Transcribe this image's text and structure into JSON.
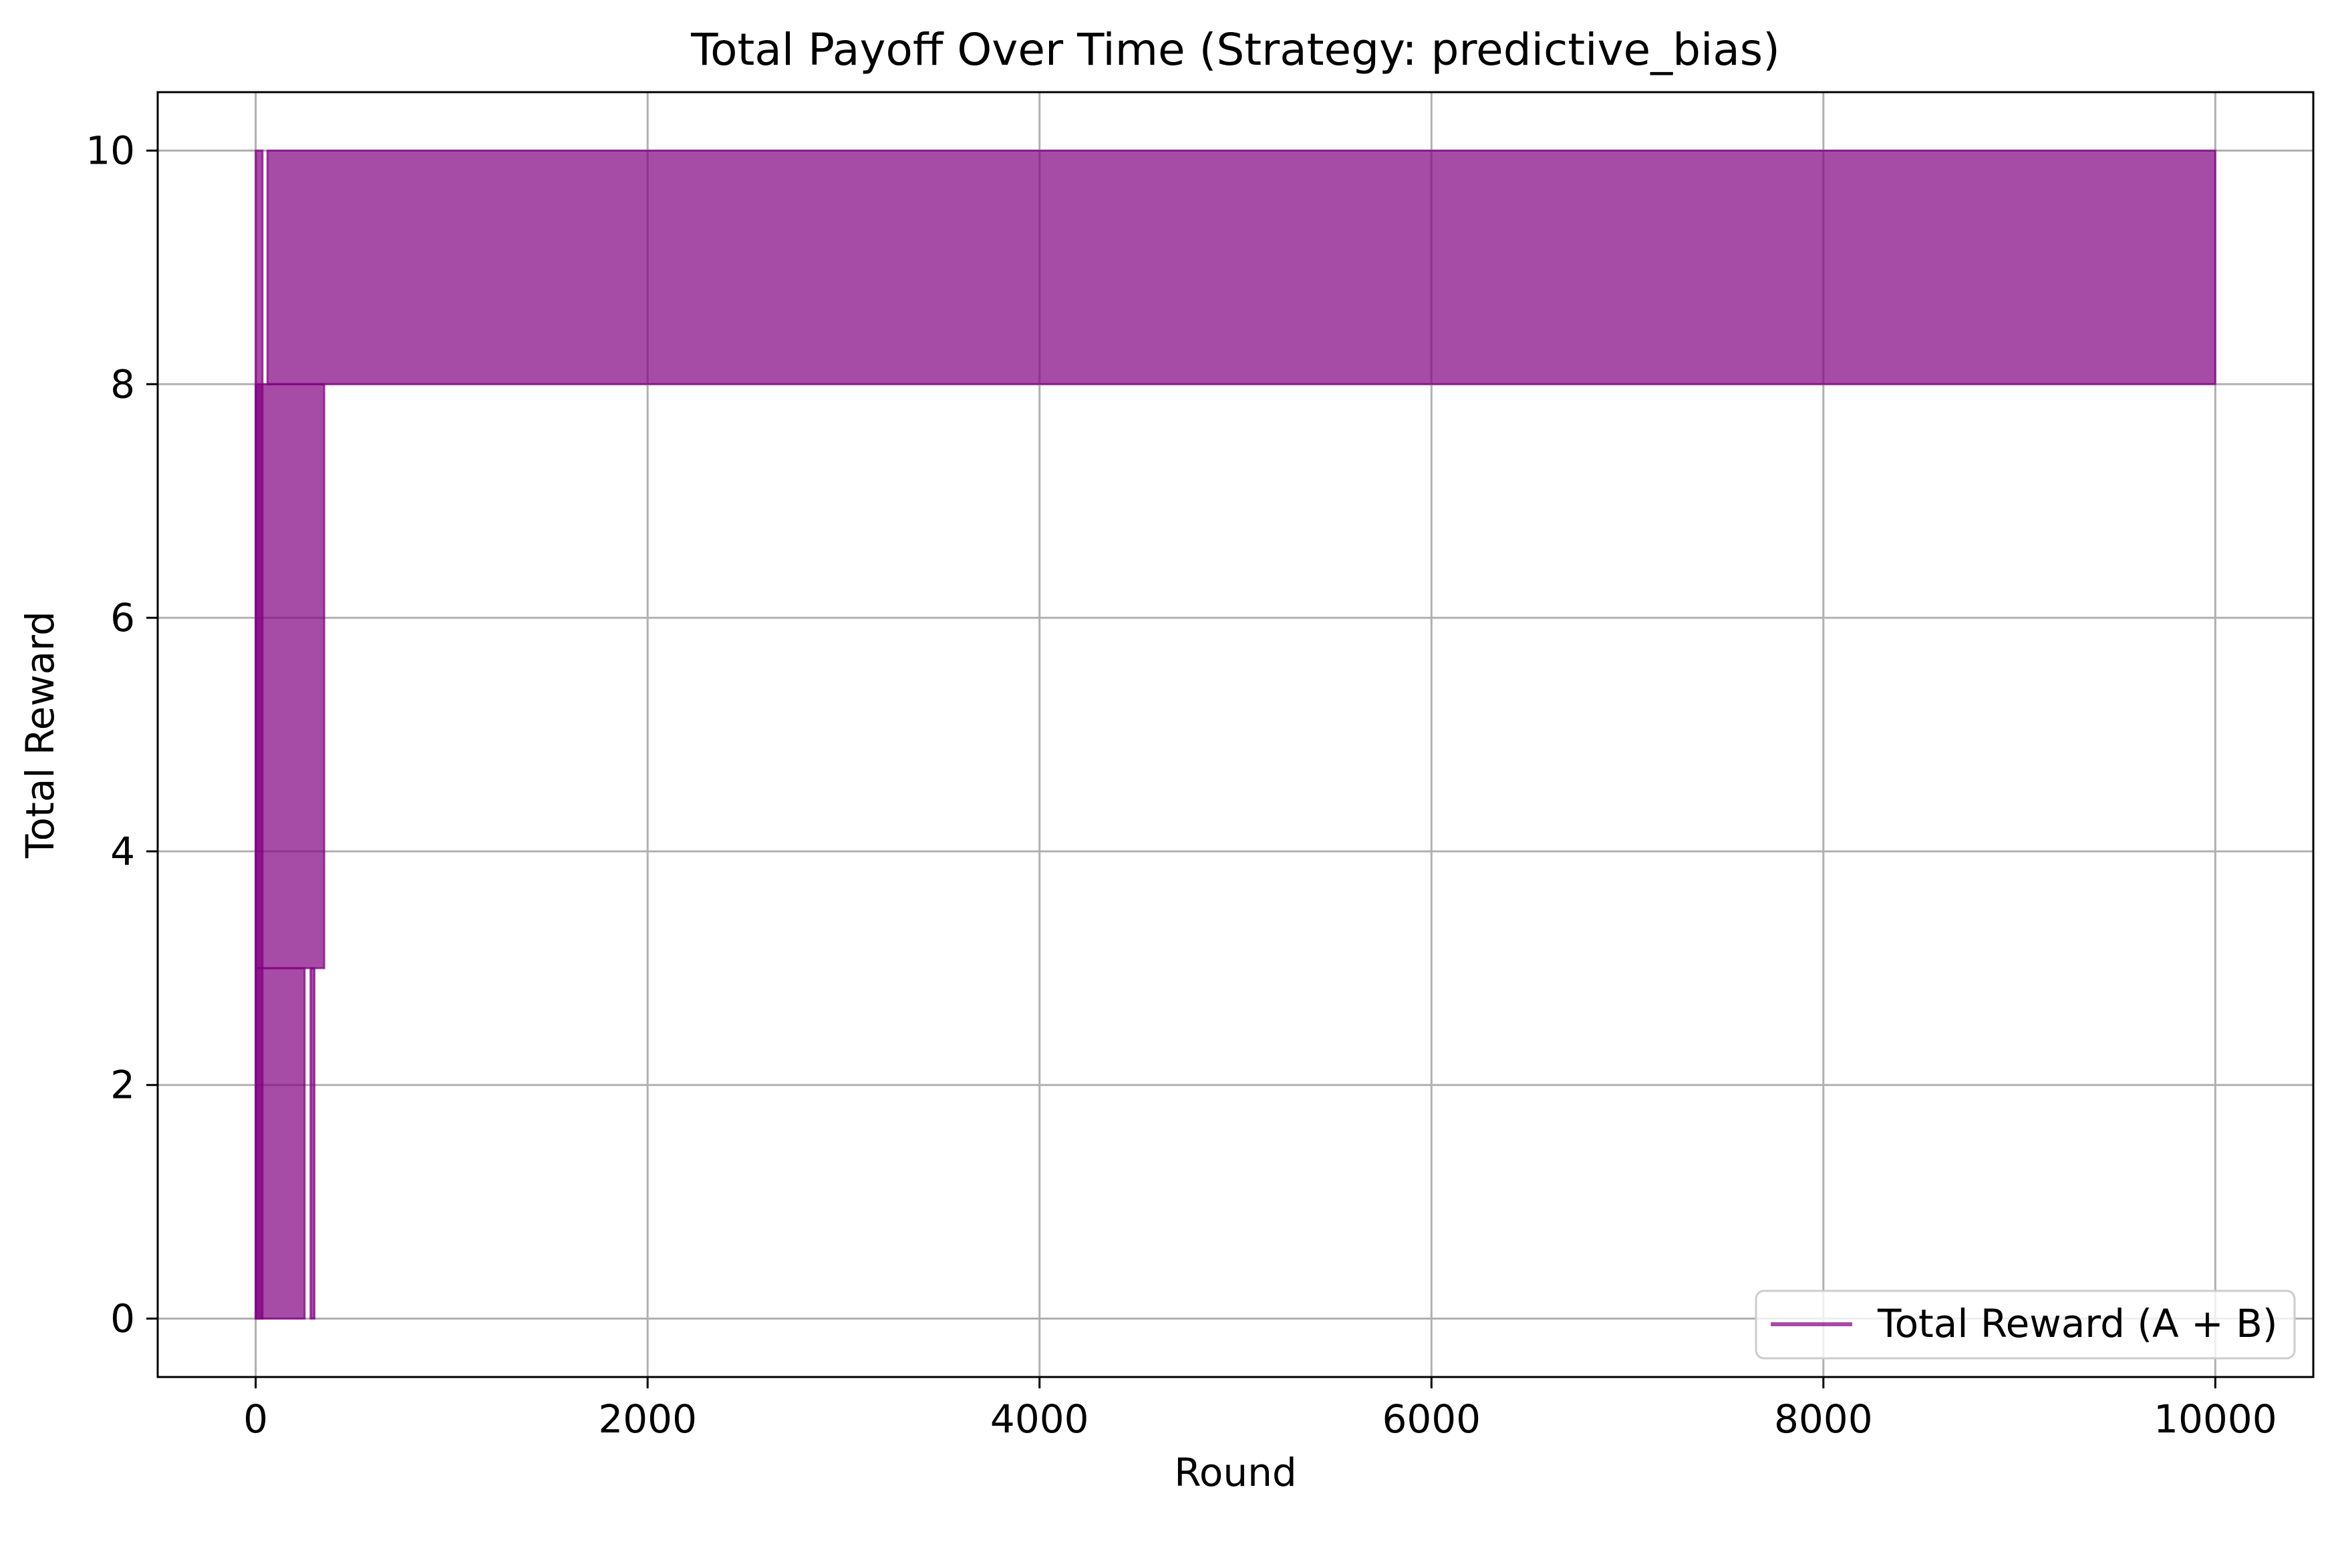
{
  "chart_data": {
    "type": "line",
    "title": "Total Payoff Over Time (Strategy: predictive_bias)",
    "xlabel": "Round",
    "ylabel": "Total Reward",
    "xlim": [
      -500,
      10500
    ],
    "ylim": [
      -0.5,
      10.5
    ],
    "xticks": [
      0,
      2000,
      4000,
      6000,
      8000,
      10000
    ],
    "yticks": [
      0,
      2,
      4,
      6,
      8,
      10
    ],
    "grid": true,
    "legend_position": "bottom-right",
    "series": [
      {
        "name": "Total Reward (A + B)",
        "color": "#800080",
        "opacity": 0.7,
        "bands": [
          {
            "x_start": 0,
            "x_end": 35,
            "y_low": 0,
            "y_high": 10
          },
          {
            "x_start": 0,
            "x_end": 250,
            "y_low": 0,
            "y_high": 3
          },
          {
            "x_start": 280,
            "x_end": 300,
            "y_low": 0,
            "y_high": 3
          },
          {
            "x_start": 0,
            "x_end": 350,
            "y_low": 3,
            "y_high": 8
          },
          {
            "x_start": 60,
            "x_end": 10000,
            "y_low": 8,
            "y_high": 10
          }
        ]
      }
    ]
  }
}
